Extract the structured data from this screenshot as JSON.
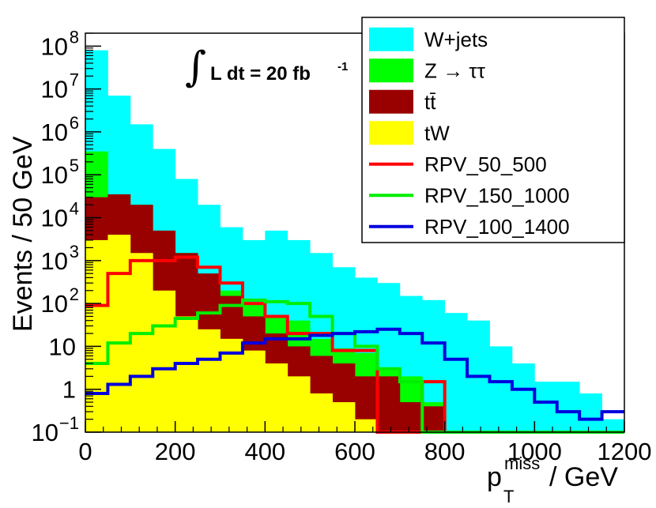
{
  "chart_data": {
    "type": "histogram-stacked",
    "x": {
      "label_main": "p",
      "label_sub": "T",
      "label_sup": "miss",
      "label_unit": "/ GeV",
      "range": [
        0,
        1200
      ],
      "bin_width": 50,
      "ticks": [
        0,
        200,
        400,
        600,
        800,
        1000,
        1200
      ],
      "tick_labels": [
        "0",
        "200",
        "400",
        "600",
        "800",
        "1000",
        "1200"
      ]
    },
    "y": {
      "label": "Events / 50 GeV",
      "scale": "log",
      "range": [
        0.1,
        200000000
      ],
      "ticks": [
        0.1,
        1,
        10,
        100,
        1000,
        10000,
        100000,
        1000000,
        10000000,
        100000000
      ],
      "tick_base": [
        "10",
        "1",
        "10",
        "10",
        "10",
        "10",
        "10",
        "10",
        "10",
        "10"
      ],
      "tick_exp": [
        "−1",
        "",
        "",
        "2",
        "3",
        "4",
        "5",
        "6",
        "7",
        "8"
      ]
    },
    "annotation": {
      "integral": "∫",
      "text": "L dt = 20 fb",
      "sup": "-1"
    },
    "stacked_series": [
      {
        "name": "W+jets",
        "color": "#00ffff",
        "totals": [
          80000000,
          7000000,
          1500000,
          400000,
          80000,
          20000,
          6000,
          3000,
          5000,
          3000,
          1500,
          700,
          400,
          300,
          150,
          120,
          60,
          40,
          10,
          4,
          1.5,
          1.5,
          0.8,
          0.2
        ]
      },
      {
        "name": "Z → ττ",
        "color": "#00ff00",
        "totals": [
          350000,
          35000,
          20000,
          2000,
          1500,
          400,
          200,
          100,
          50,
          40,
          15,
          9,
          7,
          3,
          2,
          0.5,
          0.1,
          0.1,
          0.1,
          0.1,
          0.1,
          0.1,
          0.1,
          0.1
        ]
      },
      {
        "name": "tt̄",
        "color": "#990000",
        "totals": [
          30000,
          35000,
          20000,
          5000,
          1500,
          500,
          150,
          50,
          20,
          10,
          6,
          4,
          2,
          2,
          0.5,
          0.4,
          0.1,
          0.1,
          0.1,
          0.1,
          0.1,
          0.1,
          0.1,
          0.1
        ]
      },
      {
        "name": "tW",
        "color": "#ffff00",
        "totals": [
          3000,
          4000,
          1500,
          200,
          50,
          25,
          15,
          8,
          4,
          2,
          0.8,
          0.5,
          0.2,
          0.1,
          0.1,
          0.1,
          0.1,
          0.1,
          0.1,
          0.1,
          0.1,
          0.1,
          0.1,
          0.1
        ]
      }
    ],
    "line_series": [
      {
        "name": "RPV_50_500",
        "color": "#ff0000",
        "values": [
          90,
          500,
          1000,
          1000,
          1200,
          700,
          300,
          100,
          50,
          20,
          20,
          8,
          8,
          0.1,
          0.1,
          1.5,
          0.1,
          0.1,
          0.1,
          0.1,
          0.1,
          0.1,
          0.1,
          0.1
        ]
      },
      {
        "name": "RPV_150_1000",
        "color": "#00ee00",
        "values": [
          4,
          12,
          20,
          30,
          45,
          60,
          90,
          120,
          110,
          100,
          50,
          20,
          10,
          3,
          1.5,
          0.1,
          0.1,
          0.1,
          0.1,
          0.1,
          0.1,
          0.1,
          0.1,
          0.1
        ]
      },
      {
        "name": "RPV_100_1400",
        "color": "#0000dd",
        "values": [
          0.8,
          1.3,
          2,
          3,
          4,
          5,
          7,
          12,
          15,
          15,
          18,
          20,
          22,
          25,
          20,
          12,
          5,
          2,
          1.5,
          1,
          0.5,
          0.3,
          0.2,
          0.3
        ]
      }
    ],
    "legend_position": "top-right"
  }
}
